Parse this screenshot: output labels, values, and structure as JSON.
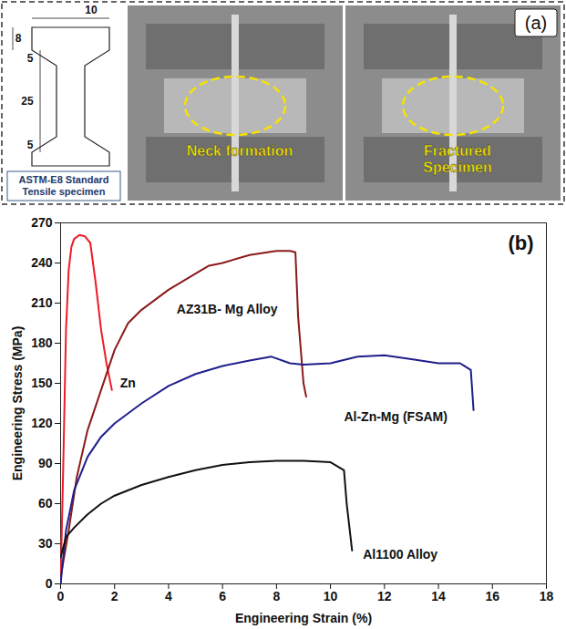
{
  "panel_a": {
    "label": "(a)",
    "specimen": {
      "dimensions": {
        "grip_height": 8,
        "width": 10,
        "fillet_top": 5,
        "gauge_length": 25,
        "fillet_bottom": 5
      },
      "caption": "ASTM-E8 Standard Tensile specimen"
    },
    "photos": [
      {
        "annotation": "Neck formation"
      },
      {
        "annotation": "Fractured Specimen"
      }
    ]
  },
  "chart_data": {
    "type": "line",
    "panel_label": "(b)",
    "x_label": "Engineering Strain (%)",
    "y_label": "Engineering Stress (MPa)",
    "xlim": [
      0,
      18
    ],
    "xticks": [
      0,
      2,
      4,
      6,
      8,
      10,
      12,
      14,
      16,
      18
    ],
    "ylim": [
      0,
      270
    ],
    "yticks": [
      0,
      30,
      60,
      90,
      120,
      150,
      180,
      210,
      240,
      270
    ],
    "grid": false,
    "series": [
      {
        "name": "Zn",
        "color": "#ee1c25",
        "label_x": 2.2,
        "label_y": 150,
        "x": [
          0,
          0.1,
          0.2,
          0.3,
          0.4,
          0.5,
          0.7,
          0.9,
          1.1,
          1.3,
          1.5,
          1.7,
          1.9
        ],
        "values": [
          0,
          90,
          190,
          235,
          252,
          258,
          261,
          260,
          255,
          225,
          190,
          165,
          145
        ]
      },
      {
        "name": "AZ31B- Mg Alloy",
        "color": "#8b1a1a",
        "label_x": 4.3,
        "label_y": 205,
        "x": [
          0,
          0.3,
          0.6,
          1,
          1.5,
          2,
          2.5,
          3,
          4,
          5,
          5.5,
          6,
          7,
          8,
          8.5,
          8.7,
          8.8,
          9,
          9.1
        ],
        "values": [
          5,
          40,
          80,
          115,
          145,
          175,
          195,
          205,
          220,
          232,
          238,
          240,
          246,
          249,
          249,
          248,
          200,
          150,
          140
        ]
      },
      {
        "name": "Al-Zn-Mg (FSAM)",
        "color": "#1f1f8c",
        "label_x": 10.5,
        "label_y": 125,
        "x": [
          0,
          0.2,
          0.5,
          1,
          1.5,
          2,
          3,
          4,
          5,
          6,
          7,
          7.8,
          8.5,
          9,
          10,
          11,
          12,
          13,
          14,
          14.8,
          15.2,
          15.3
        ],
        "values": [
          0,
          40,
          70,
          95,
          110,
          120,
          135,
          148,
          157,
          163,
          167,
          170,
          165,
          164,
          165,
          170,
          171,
          168,
          165,
          165,
          160,
          130
        ]
      },
      {
        "name": "Al1100 Alloy",
        "color": "#111111",
        "label_x": 11.2,
        "label_y": 22,
        "x": [
          0,
          0.2,
          0.5,
          1,
          1.5,
          2,
          3,
          4,
          5,
          6,
          7,
          8,
          9,
          10,
          10.5,
          10.6,
          10.8
        ],
        "values": [
          20,
          35,
          42,
          52,
          60,
          66,
          74,
          80,
          85,
          89,
          91,
          92,
          92,
          91,
          85,
          60,
          25
        ]
      }
    ]
  }
}
